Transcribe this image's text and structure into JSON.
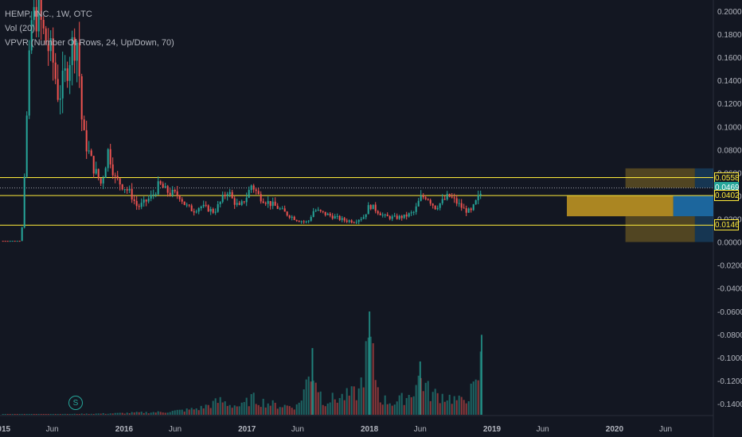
{
  "header": {
    "symbol": "HEMP, INC., 1W, OTC",
    "volume_indicator": "Vol (20)",
    "vpvr_indicator": "VPVR (Number Of Rows, 24, Up/Down, 70)"
  },
  "colors": {
    "background": "#131722",
    "up": "#26a69a",
    "down": "#ef5350",
    "horizontal_line": "#ffeb3b",
    "vpvr_up": "#1e6fab",
    "vpvr_down": "#c79a22",
    "axis_text": "#b2b5be"
  },
  "markers": {
    "split": "S"
  },
  "chart_data": {
    "type": "candlestick",
    "y_axis": {
      "min": -0.15,
      "max": 0.2,
      "ticks": [
        0.2,
        0.18,
        0.16,
        0.14,
        0.12,
        0.1,
        0.08,
        0.06,
        0.04,
        0.02,
        0.0,
        -0.02,
        -0.04,
        -0.06,
        -0.08,
        -0.1,
        -0.12,
        -0.14
      ],
      "tick_labels": [
        "0.2000",
        "0.1800",
        "0.1600",
        "0.1400",
        "0.1200",
        "0.1000",
        "0.0800",
        "0.0600",
        "0.0400",
        "0.0200",
        "0.0000",
        "-0.0200",
        "-0.0400",
        "-0.0600",
        "-0.0800",
        "-0.1000",
        "-0.1200",
        "-0.1400"
      ]
    },
    "x_axis": {
      "tick_labels": [
        {
          "label": "2015",
          "date": "2015-01-01"
        },
        {
          "label": "Jun",
          "date": "2015-06-01"
        },
        {
          "label": "2016",
          "date": "2016-01-01"
        },
        {
          "label": "Jun",
          "date": "2016-06-01"
        },
        {
          "label": "2017",
          "date": "2017-01-01"
        },
        {
          "label": "Jun",
          "date": "2017-06-01"
        },
        {
          "label": "2018",
          "date": "2018-01-01"
        },
        {
          "label": "Jun",
          "date": "2018-06-01"
        },
        {
          "label": "2019",
          "date": "2019-01-01"
        },
        {
          "label": "Jun",
          "date": "2019-06-01"
        },
        {
          "label": "2020",
          "date": "2020-01-01"
        },
        {
          "label": "Jun",
          "date": "2020-06-01"
        }
      ]
    },
    "price_series": [
      {
        "date": "2015-01-05",
        "value": 0.001
      },
      {
        "date": "2015-03-01",
        "value": 0.001
      },
      {
        "date": "2015-03-30",
        "value": 0.19
      },
      {
        "date": "2015-04-20",
        "value": 0.2
      },
      {
        "date": "2015-05-10",
        "value": 0.175
      },
      {
        "date": "2015-06-01",
        "value": 0.16
      },
      {
        "date": "2015-06-20",
        "value": 0.125
      },
      {
        "date": "2015-07-10",
        "value": 0.145
      },
      {
        "date": "2015-07-30",
        "value": 0.17
      },
      {
        "date": "2015-08-15",
        "value": 0.175
      },
      {
        "date": "2015-08-30",
        "value": 0.095
      },
      {
        "date": "2015-09-15",
        "value": 0.08
      },
      {
        "date": "2015-10-01",
        "value": 0.065
      },
      {
        "date": "2015-10-25",
        "value": 0.05
      },
      {
        "date": "2015-11-15",
        "value": 0.08
      },
      {
        "date": "2015-12-05",
        "value": 0.055
      },
      {
        "date": "2016-01-01",
        "value": 0.048
      },
      {
        "date": "2016-01-20",
        "value": 0.042
      },
      {
        "date": "2016-02-10",
        "value": 0.03
      },
      {
        "date": "2016-03-01",
        "value": 0.034
      },
      {
        "date": "2016-03-25",
        "value": 0.04
      },
      {
        "date": "2016-04-15",
        "value": 0.05
      },
      {
        "date": "2016-05-05",
        "value": 0.044
      },
      {
        "date": "2016-05-25",
        "value": 0.042
      },
      {
        "date": "2016-06-15",
        "value": 0.04
      },
      {
        "date": "2016-07-01",
        "value": 0.032
      },
      {
        "date": "2016-07-25",
        "value": 0.027
      },
      {
        "date": "2016-08-15",
        "value": 0.031
      },
      {
        "date": "2016-09-05",
        "value": 0.029
      },
      {
        "date": "2016-09-25",
        "value": 0.026
      },
      {
        "date": "2016-10-15",
        "value": 0.035
      },
      {
        "date": "2016-11-05",
        "value": 0.045
      },
      {
        "date": "2016-11-20",
        "value": 0.036
      },
      {
        "date": "2016-12-10",
        "value": 0.03
      },
      {
        "date": "2017-01-01",
        "value": 0.04
      },
      {
        "date": "2017-01-15",
        "value": 0.05
      },
      {
        "date": "2017-02-05",
        "value": 0.04
      },
      {
        "date": "2017-03-01",
        "value": 0.035
      },
      {
        "date": "2017-04-01",
        "value": 0.03
      },
      {
        "date": "2017-05-01",
        "value": 0.024
      },
      {
        "date": "2017-06-01",
        "value": 0.019
      },
      {
        "date": "2017-07-01",
        "value": 0.017
      },
      {
        "date": "2017-07-20",
        "value": 0.028
      },
      {
        "date": "2017-08-15",
        "value": 0.025
      },
      {
        "date": "2017-09-15",
        "value": 0.022
      },
      {
        "date": "2017-10-15",
        "value": 0.019
      },
      {
        "date": "2017-11-15",
        "value": 0.018
      },
      {
        "date": "2017-12-15",
        "value": 0.022
      },
      {
        "date": "2018-01-01",
        "value": 0.032
      },
      {
        "date": "2018-01-20",
        "value": 0.028
      },
      {
        "date": "2018-02-15",
        "value": 0.022
      },
      {
        "date": "2018-03-15",
        "value": 0.021
      },
      {
        "date": "2018-04-15",
        "value": 0.022
      },
      {
        "date": "2018-05-15",
        "value": 0.026
      },
      {
        "date": "2018-06-01",
        "value": 0.038
      },
      {
        "date": "2018-06-20",
        "value": 0.04
      },
      {
        "date": "2018-07-15",
        "value": 0.03
      },
      {
        "date": "2018-08-10",
        "value": 0.036
      },
      {
        "date": "2018-08-25",
        "value": 0.04
      },
      {
        "date": "2018-09-15",
        "value": 0.035
      },
      {
        "date": "2018-10-10",
        "value": 0.028
      },
      {
        "date": "2018-10-30",
        "value": 0.026
      },
      {
        "date": "2018-11-15",
        "value": 0.035
      },
      {
        "date": "2018-11-28",
        "value": 0.042
      },
      {
        "date": "2018-12-05",
        "value": 0.0469
      }
    ],
    "volume_series": [
      {
        "date": "2015-01-05",
        "value": 1
      },
      {
        "date": "2015-06-01",
        "value": 1
      },
      {
        "date": "2015-09-15",
        "value": 2
      },
      {
        "date": "2015-12-01",
        "value": 3
      },
      {
        "date": "2016-03-01",
        "value": 5
      },
      {
        "date": "2016-05-01",
        "value": 6
      },
      {
        "date": "2016-07-01",
        "value": 10
      },
      {
        "date": "2016-08-15",
        "value": 14
      },
      {
        "date": "2016-10-15",
        "value": 30
      },
      {
        "date": "2016-11-10",
        "value": 22
      },
      {
        "date": "2016-12-15",
        "value": 18
      },
      {
        "date": "2017-01-15",
        "value": 35
      },
      {
        "date": "2017-02-15",
        "value": 28
      },
      {
        "date": "2017-04-01",
        "value": 20
      },
      {
        "date": "2017-06-01",
        "value": 18
      },
      {
        "date": "2017-07-15",
        "value": 100
      },
      {
        "date": "2017-08-15",
        "value": 30
      },
      {
        "date": "2017-10-15",
        "value": 38
      },
      {
        "date": "2017-12-01",
        "value": 48
      },
      {
        "date": "2018-01-01",
        "value": 155
      },
      {
        "date": "2018-02-01",
        "value": 35
      },
      {
        "date": "2018-03-15",
        "value": 25
      },
      {
        "date": "2018-05-01",
        "value": 42
      },
      {
        "date": "2018-06-01",
        "value": 80
      },
      {
        "date": "2018-07-01",
        "value": 45
      },
      {
        "date": "2018-08-15",
        "value": 40
      },
      {
        "date": "2018-10-01",
        "value": 28
      },
      {
        "date": "2018-11-15",
        "value": 60
      },
      {
        "date": "2018-12-01",
        "value": 120
      }
    ],
    "horizontal_levels": [
      0.0558,
      0.0469,
      0.0402,
      0.0146
    ],
    "current_price": 0.0469,
    "price_labels": [
      "0.0558",
      "0.0469",
      "0.0402",
      "0.0146"
    ],
    "volume_profile": [
      {
        "price_from": 0.0558,
        "price_to": 0.0638,
        "up": 0.3,
        "down": 0.6
      },
      {
        "price_from": 0.0469,
        "price_to": 0.0558,
        "up": 0.3,
        "down": 0.6
      },
      {
        "price_from": 0.0223,
        "price_to": 0.0402,
        "up": 0.65,
        "down": 1.0
      },
      {
        "price_from": 0.0146,
        "price_to": 0.0223,
        "up": 0.3,
        "down": 0.6
      },
      {
        "price_from": 0.0,
        "price_to": 0.0146,
        "up": 0.3,
        "down": 0.6
      }
    ]
  }
}
